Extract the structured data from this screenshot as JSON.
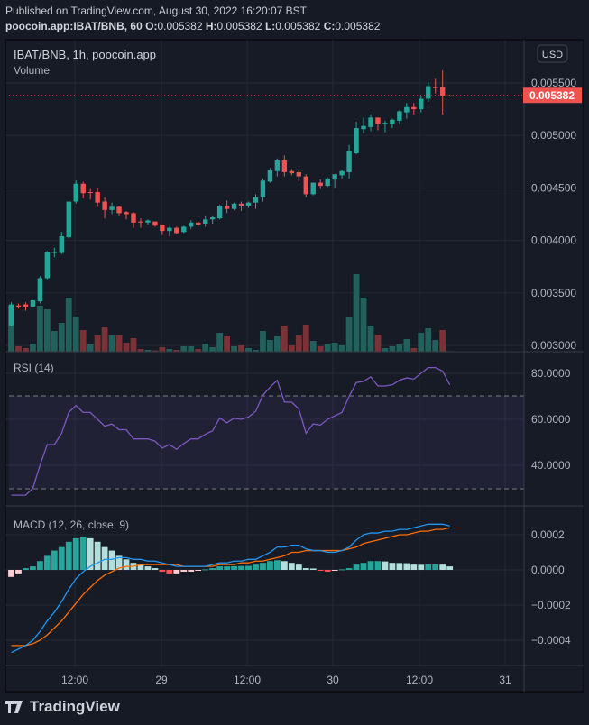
{
  "header": {
    "published": "Published on TradingView.com, August 30, 2022 16:20:07 BST",
    "symbol": "poocoin.app:IBAT/BNB, 60",
    "o_label": "O:",
    "o": "0.005382",
    "h_label": "H:",
    "h": "0.005382",
    "l_label": "L:",
    "l": "0.005382",
    "c_label": "C:",
    "c": "0.005382"
  },
  "legend": {
    "title": "IBAT/BNB, 1h, poocoin.app",
    "volume": "Volume",
    "currency_button": "USD"
  },
  "footer": {
    "brand": "TradingView"
  },
  "colors": {
    "up": "#26a69a",
    "down": "#ef5350",
    "rsi": "#7e57c2",
    "macd": "#2196f3",
    "signal": "#ff6d00",
    "background": "#171b26"
  },
  "chart_data": [
    {
      "type": "candlestick",
      "title": "IBAT/BNB, 1h, poocoin.app",
      "last_price": "0.005382",
      "y_ticks": [
        "0.005500",
        "0.005000",
        "0.004500",
        "0.004000",
        "0.003500",
        "0.003000"
      ],
      "y_tick_values": [
        0.0055,
        0.005,
        0.0045,
        0.004,
        0.0035,
        0.003
      ],
      "ylim": [
        0.00293,
        0.00565
      ],
      "x_ticks": [
        "12:00",
        "29",
        "12:00",
        "30",
        "12:00",
        "31"
      ],
      "x_tick_index": [
        9,
        21,
        33,
        45,
        57,
        69
      ],
      "grid": true,
      "ohlc": [
        [
          0.00319,
          0.00341,
          0.00318,
          0.00339
        ],
        [
          0.00338,
          0.0034,
          0.00335,
          0.00337
        ],
        [
          0.00339,
          0.00341,
          0.00333,
          0.00337
        ],
        [
          0.00337,
          0.00343,
          0.00337,
          0.00343
        ],
        [
          0.00342,
          0.00366,
          0.0034,
          0.00364
        ],
        [
          0.00364,
          0.0039,
          0.00363,
          0.00389
        ],
        [
          0.00388,
          0.00393,
          0.00384,
          0.00389
        ],
        [
          0.00388,
          0.00408,
          0.00387,
          0.00404
        ],
        [
          0.00403,
          0.00437,
          0.00402,
          0.00437
        ],
        [
          0.00437,
          0.00457,
          0.00435,
          0.00454
        ],
        [
          0.00454,
          0.00456,
          0.0044,
          0.00445
        ],
        [
          0.00446,
          0.00449,
          0.00439,
          0.00446
        ],
        [
          0.00446,
          0.0045,
          0.00432,
          0.00436
        ],
        [
          0.00437,
          0.00441,
          0.00421,
          0.00429
        ],
        [
          0.00429,
          0.00436,
          0.00425,
          0.00432
        ],
        [
          0.00432,
          0.00433,
          0.00424,
          0.00426
        ],
        [
          0.00427,
          0.00428,
          0.0042,
          0.00425
        ],
        [
          0.00426,
          0.00427,
          0.00412,
          0.00417
        ],
        [
          0.00418,
          0.00421,
          0.00412,
          0.00417
        ],
        [
          0.00417,
          0.0042,
          0.00415,
          0.00419
        ],
        [
          0.00418,
          0.00418,
          0.00413,
          0.00414
        ],
        [
          0.00415,
          0.00415,
          0.00405,
          0.00409
        ],
        [
          0.00409,
          0.00413,
          0.00404,
          0.00412
        ],
        [
          0.00412,
          0.00413,
          0.00406,
          0.00407
        ],
        [
          0.00408,
          0.00414,
          0.00407,
          0.00413
        ],
        [
          0.00413,
          0.00419,
          0.00411,
          0.00417
        ],
        [
          0.00417,
          0.00418,
          0.00413,
          0.00415
        ],
        [
          0.00416,
          0.00423,
          0.00413,
          0.0042
        ],
        [
          0.0042,
          0.00423,
          0.00416,
          0.00422
        ],
        [
          0.00421,
          0.00434,
          0.0042,
          0.00433
        ],
        [
          0.00433,
          0.00438,
          0.00426,
          0.0043
        ],
        [
          0.0043,
          0.00436,
          0.00429,
          0.00435
        ],
        [
          0.00435,
          0.00437,
          0.00428,
          0.00433
        ],
        [
          0.00433,
          0.00437,
          0.00431,
          0.00436
        ],
        [
          0.00436,
          0.00444,
          0.0043,
          0.00441
        ],
        [
          0.00441,
          0.00459,
          0.00437,
          0.00457
        ],
        [
          0.00456,
          0.00469,
          0.00455,
          0.00467
        ],
        [
          0.00466,
          0.00478,
          0.00461,
          0.00477
        ],
        [
          0.00477,
          0.00481,
          0.00461,
          0.00465
        ],
        [
          0.00466,
          0.00468,
          0.00462,
          0.00464
        ],
        [
          0.00465,
          0.00467,
          0.00456,
          0.00461
        ],
        [
          0.00461,
          0.00463,
          0.00441,
          0.00444
        ],
        [
          0.00444,
          0.00455,
          0.00443,
          0.00455
        ],
        [
          0.00455,
          0.00458,
          0.00449,
          0.00452
        ],
        [
          0.00452,
          0.0046,
          0.00451,
          0.00459
        ],
        [
          0.00458,
          0.00463,
          0.0045,
          0.00463
        ],
        [
          0.00462,
          0.00467,
          0.00459,
          0.00466
        ],
        [
          0.00465,
          0.00491,
          0.00459,
          0.00485
        ],
        [
          0.00483,
          0.00513,
          0.00482,
          0.00507
        ],
        [
          0.00506,
          0.00517,
          0.00502,
          0.00509
        ],
        [
          0.00508,
          0.0052,
          0.00504,
          0.00517
        ],
        [
          0.00517,
          0.00517,
          0.00505,
          0.00511
        ],
        [
          0.00512,
          0.00514,
          0.00503,
          0.00512
        ],
        [
          0.00511,
          0.00516,
          0.00507,
          0.00515
        ],
        [
          0.00514,
          0.00524,
          0.00511,
          0.00523
        ],
        [
          0.00522,
          0.00531,
          0.00516,
          0.00527
        ],
        [
          0.00527,
          0.00531,
          0.0052,
          0.00525
        ],
        [
          0.00525,
          0.00538,
          0.00522,
          0.00535
        ],
        [
          0.00535,
          0.00551,
          0.00532,
          0.00547
        ],
        [
          0.00546,
          0.00554,
          0.0054,
          0.00546
        ],
        [
          0.00546,
          0.00562,
          0.0052,
          0.00538
        ],
        [
          0.005382,
          0.005382,
          0.005382,
          0.005382
        ]
      ],
      "volume_relative": [
        155,
        18,
        12,
        27,
        153,
        141,
        69,
        96,
        180,
        117,
        72,
        24,
        54,
        81,
        54,
        54,
        30,
        45,
        9,
        6,
        4,
        15,
        9,
        6,
        18,
        18,
        9,
        27,
        15,
        63,
        51,
        18,
        21,
        12,
        6,
        69,
        39,
        51,
        87,
        21,
        54,
        90,
        36,
        18,
        24,
        30,
        21,
        114,
        258,
        180,
        87,
        57,
        12,
        18,
        24,
        42,
        12,
        63,
        78,
        39,
        72,
        2
      ]
    },
    {
      "type": "line",
      "title": "RSI (14)",
      "y_ticks": [
        "80.0000",
        "60.0000",
        "40.0000"
      ],
      "y_tick_values": [
        80,
        60,
        40
      ],
      "bands": [
        70,
        30
      ],
      "ylim": [
        21,
        87
      ],
      "series": [
        {
          "values": [
            27,
            27,
            27,
            30,
            40,
            49,
            49,
            54,
            63,
            66,
            63,
            63,
            60,
            57,
            58,
            55.5,
            55.5,
            51.5,
            51.5,
            51.5,
            50.5,
            47.5,
            49,
            47,
            49.5,
            51.5,
            51.5,
            53.5,
            55,
            60.5,
            58.5,
            60.5,
            60,
            61,
            63.5,
            70.5,
            74,
            77,
            67.5,
            67.5,
            64.5,
            54,
            58,
            57.5,
            60,
            61.5,
            63,
            70,
            76,
            76.5,
            78.5,
            74.5,
            74.5,
            75,
            77,
            78,
            77.5,
            80,
            82.5,
            82.5,
            81,
            75
          ]
        }
      ]
    },
    {
      "type": "bar+line",
      "title": "MACD (12, 26, close, 9)",
      "y_ticks": [
        "0.0002",
        "0.0000",
        "−0.0002",
        "−0.0004"
      ],
      "y_tick_values": [
        0.0002,
        0,
        -0.0002,
        -0.0004
      ],
      "ylim": [
        -0.00054,
        0.00032
      ],
      "histogram": [
        -4e-05,
        -2e-05,
        1e-05,
        2e-05,
        5e-05,
        8e-05,
        0.00011,
        0.00013,
        0.00016,
        0.00018,
        0.00019,
        0.00018,
        0.00016,
        0.00013,
        0.00011,
        8e-05,
        6e-05,
        4e-05,
        3e-05,
        2e-05,
        1e-05,
        -1e-05,
        -2e-05,
        -2e-05,
        -1e-05,
        -1e-05,
        -5e-06,
        3e-06,
        1e-05,
        2e-05,
        2e-05,
        2.1e-05,
        2.2e-05,
        2.3e-05,
        3e-05,
        4e-05,
        5e-05,
        5.5e-05,
        5e-05,
        4e-05,
        3e-05,
        1e-05,
        8e-06,
        -5e-06,
        -1e-05,
        -5e-06,
        3e-06,
        1e-05,
        3e-05,
        4e-05,
        5e-05,
        5e-05,
        4.8e-05,
        4e-05,
        3.9e-05,
        3.8e-05,
        3e-05,
        2.9e-05,
        3.2e-05,
        3.3e-05,
        3e-05,
        2e-05
      ],
      "series": [
        {
          "values": [
            -0.00047,
            -0.00045,
            -0.00043,
            -0.0004,
            -0.00035,
            -0.00029,
            -0.00024,
            -0.00018,
            -0.00011,
            -5e-05,
            -1e-05,
            2e-05,
            4e-05,
            6e-05,
            6e-05,
            7e-05,
            7e-05,
            6e-05,
            6e-05,
            5e-05,
            5e-05,
            4e-05,
            3e-05,
            2e-05,
            2e-05,
            2e-05,
            2e-05,
            2e-05,
            3e-05,
            4e-05,
            4e-05,
            5e-05,
            5e-05,
            6e-05,
            6e-05,
            8e-05,
            0.0001,
            0.00013,
            0.00013,
            0.00014,
            0.00014,
            0.00012,
            0.00011,
            0.00011,
            0.0001,
            0.0001,
            0.00011,
            0.00013,
            0.00017,
            0.0002,
            0.00021,
            0.00021,
            0.00022,
            0.00022,
            0.00023,
            0.00023,
            0.00024,
            0.00025,
            0.00026,
            0.00026,
            0.00026,
            0.00025
          ]
        },
        {
          "values": [
            -0.00043,
            -0.00043,
            -0.00043,
            -0.00042,
            -0.0004,
            -0.00037,
            -0.00033,
            -0.00029,
            -0.00024,
            -0.00019,
            -0.00014,
            -0.0001,
            -6e-05,
            -3e-05,
            -1e-05,
            1e-05,
            2e-05,
            2e-05,
            3e-05,
            3e-05,
            3e-05,
            3e-05,
            3e-05,
            3e-05,
            2e-05,
            2e-05,
            2e-05,
            2e-05,
            2e-05,
            3e-05,
            3e-05,
            3e-05,
            4e-05,
            4e-05,
            5e-05,
            5e-05,
            6e-05,
            7e-05,
            8e-05,
            0.0001,
            0.0001,
            0.00011,
            0.00011,
            0.00011,
            0.00011,
            0.00011,
            0.00011,
            0.00012,
            0.00013,
            0.00015,
            0.00016,
            0.00017,
            0.00018,
            0.00019,
            0.0002,
            0.0002,
            0.00021,
            0.00022,
            0.00022,
            0.00023,
            0.00023,
            0.00024
          ]
        }
      ]
    }
  ]
}
